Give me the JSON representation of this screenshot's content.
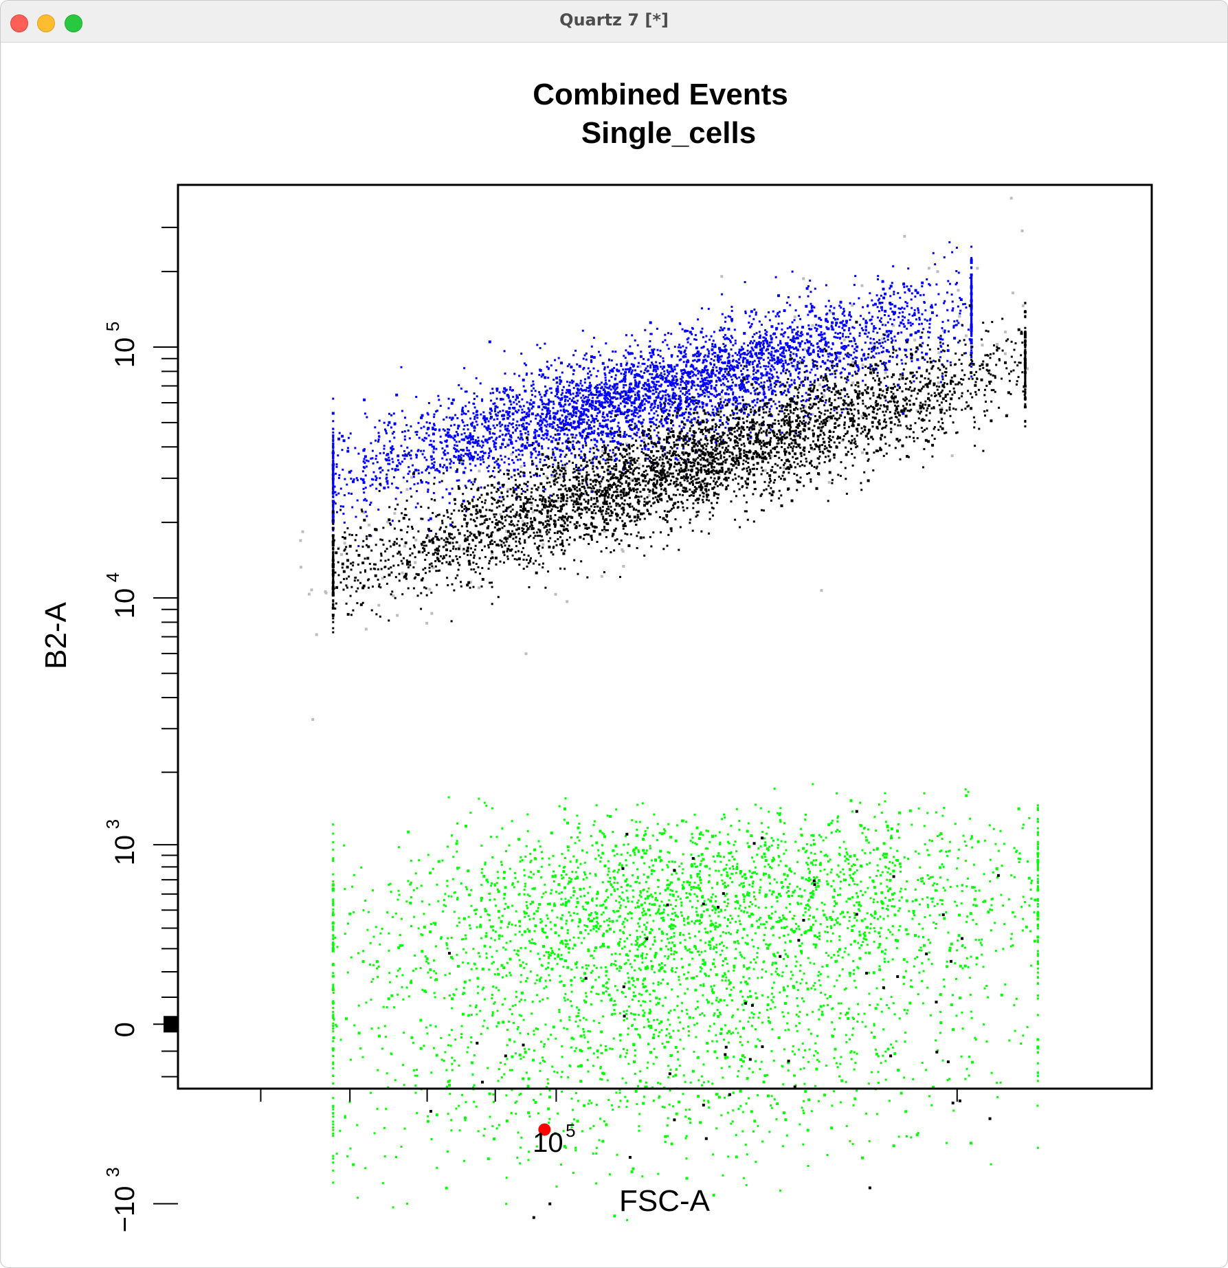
{
  "window": {
    "title": "Quartz 7 [*]",
    "buttons": [
      "close",
      "minimize",
      "zoom"
    ]
  },
  "chart_data": {
    "type": "scatter",
    "title": "Combined Events",
    "subtitle": "Single_cells",
    "xlabel": "FSC-A",
    "ylabel": "B2-A",
    "x_scale": "log",
    "y_scale": "biexponential",
    "xlim": [
      52000,
      280000
    ],
    "ylim": [
      -2000,
      350000
    ],
    "x_tick_labels": [
      {
        "value": 100000,
        "label": "10",
        "sup": "5"
      }
    ],
    "y_tick_labels": [
      {
        "value": 100000,
        "label": "10",
        "sup": "5"
      },
      {
        "value": 10000,
        "label": "10",
        "sup": "4"
      },
      {
        "value": 1000,
        "label": "10",
        "sup": "3"
      },
      {
        "value": 0,
        "label": "0",
        "sup": ""
      },
      {
        "value": -1000,
        "label": "−10",
        "sup": "3"
      }
    ],
    "grid": false,
    "legend": "none",
    "colors": {
      "blue_population": "#0000ff",
      "black_population": "#000000",
      "green_population": "#00ff00",
      "grey_background": "#bdbdbd",
      "highlight_point": "#ff0000"
    },
    "series": [
      {
        "color": "#0000ff",
        "kind": "band",
        "x_range": [
          68000,
          205000
        ],
        "y_at_x_start": 31000,
        "y_at_x_end": 140000,
        "spread_decades": 0.32
      },
      {
        "color": "#000000",
        "kind": "band",
        "x_range": [
          68000,
          225000
        ],
        "y_at_x_start": 12500,
        "y_at_x_end": 87000,
        "spread_decades": 0.32
      },
      {
        "color": "#00ff00",
        "kind": "cloud",
        "x_range": [
          68000,
          230000
        ],
        "y_center_start": 150,
        "y_center_end": 550,
        "y_range": [
          -1400,
          2400
        ]
      }
    ],
    "highlight_points": [
      {
        "x": 98000,
        "y": -450,
        "color": "#ff0000"
      }
    ]
  }
}
